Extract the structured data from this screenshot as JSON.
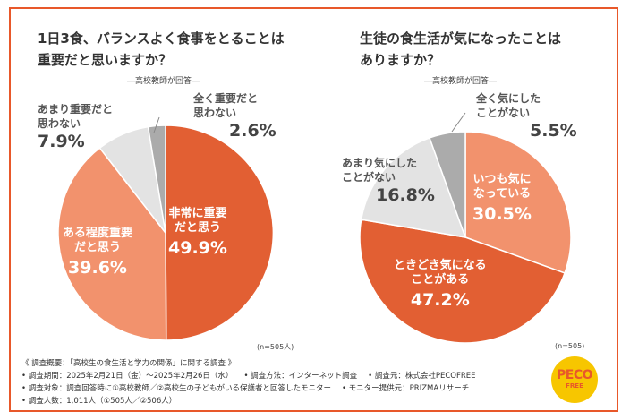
{
  "colors": {
    "frame": "#e8582a",
    "dark_orange": "#e25f33",
    "light_orange": "#f2926d",
    "light_gray": "#e3e3e3",
    "dark_gray": "#ababab"
  },
  "chart_data": [
    {
      "type": "pie",
      "title_line1": "1日3食、バランスよく食事をとることは",
      "title_line2": "重要だと思いますか？",
      "subtitle": "―高校教師が回答―",
      "n": "(n=505人)",
      "slices": [
        {
          "label": "非常に重要だと思う",
          "label_line1": "非常に重要",
          "label_line2": "だと思う",
          "value": 49.9,
          "pct": "49.9%"
        },
        {
          "label": "ある程度重要だと思う",
          "label_line1": "ある程度重要",
          "label_line2": "だと思う",
          "value": 39.6,
          "pct": "39.6%"
        },
        {
          "label": "あまり重要だと思わない",
          "label_line1": "あまり重要だと",
          "label_line2": "思わない",
          "value": 7.9,
          "pct": "7.9%"
        },
        {
          "label": "全く重要だと思わない",
          "label_line1": "全く重要だと",
          "label_line2": "思わない",
          "value": 2.6,
          "pct": "2.6%"
        }
      ]
    },
    {
      "type": "pie",
      "title_line1": "生徒の食生活が気になったことは",
      "title_line2": "ありますか？",
      "subtitle": "―高校教師が回答―",
      "n": "(n=505)",
      "slices": [
        {
          "label": "いつも気になっている",
          "label_line1": "いつも気に",
          "label_line2": "なっている",
          "value": 30.5,
          "pct": "30.5%"
        },
        {
          "label": "ときどき気になることがある",
          "label_line1": "ときどき気になる",
          "label_line2": "ことがある",
          "value": 47.2,
          "pct": "47.2%"
        },
        {
          "label": "あまり気にしたことがない",
          "label_line1": "あまり気にした",
          "label_line2": "ことがない",
          "value": 16.8,
          "pct": "16.8%"
        },
        {
          "label": "全く気にしたことがない",
          "label_line1": "全く気にした",
          "label_line2": "ことがない",
          "value": 5.5,
          "pct": "5.5%"
        }
      ]
    }
  ],
  "notes": {
    "title": "《 調査概要：「高校生の食生活と学力の関係」に関する調査 》",
    "period": "• 調査期間：2025年2月21日（金）～2025年2月26日（水）",
    "method": "• 調査方法：インターネット調査",
    "source": "• 調査元：株式会社PECOFREE",
    "target": "• 調査対象：調査回答時に①高校教師／②高校生の子どもがいる保護者と回答したモニター",
    "provider": "• モニター提供元：PRIZMAリサーチ",
    "count": "• 調査人数：1,011人（①505人／②506人）"
  },
  "logo": {
    "line1": "PECO",
    "line2": "FREE"
  }
}
